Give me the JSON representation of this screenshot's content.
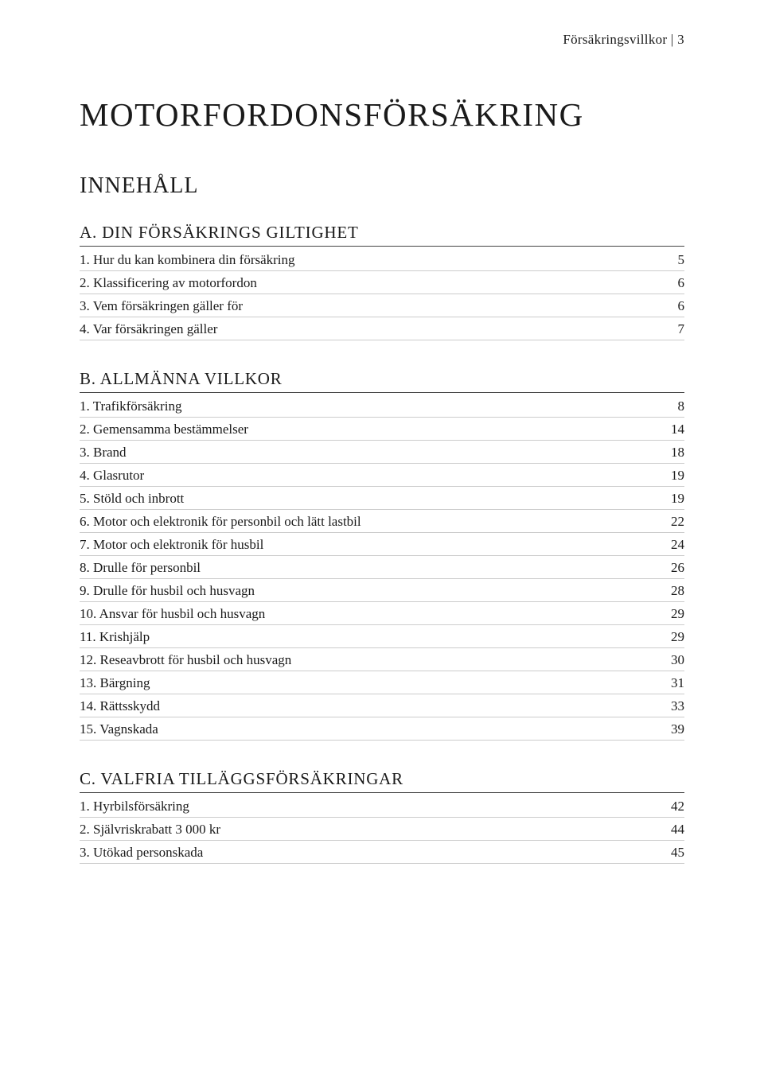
{
  "header": {
    "text": "Försäkringsvillkor | 3"
  },
  "title": "MOTORFORDONSFÖRSÄKRING",
  "subtitle": "INNEHÅLL",
  "sections": [
    {
      "heading": "A. DIN FÖRSÄKRINGS GILTIGHET",
      "items": [
        {
          "label": "1. Hur du kan kombinera din försäkring",
          "page": "5"
        },
        {
          "label": "2. Klassificering av motorfordon",
          "page": "6"
        },
        {
          "label": "3. Vem försäkringen gäller för",
          "page": "6"
        },
        {
          "label": "4. Var försäkringen gäller",
          "page": "7"
        }
      ]
    },
    {
      "heading": "B. ALLMÄNNA VILLKOR",
      "items": [
        {
          "label": "1. Trafikförsäkring",
          "page": "8"
        },
        {
          "label": "2. Gemensamma bestämmelser",
          "page": "14"
        },
        {
          "label": "3. Brand",
          "page": "18"
        },
        {
          "label": "4. Glasrutor",
          "page": "19"
        },
        {
          "label": "5. Stöld och inbrott",
          "page": "19"
        },
        {
          "label": "6. Motor och elektronik för personbil och lätt lastbil",
          "page": "22"
        },
        {
          "label": "7. Motor och elektronik för husbil",
          "page": "24"
        },
        {
          "label": "8. Drulle för personbil",
          "page": "26"
        },
        {
          "label": "9. Drulle för husbil och husvagn",
          "page": "28"
        },
        {
          "label": "10. Ansvar för husbil och husvagn",
          "page": "29"
        },
        {
          "label": "11. Krishjälp",
          "page": "29"
        },
        {
          "label": "12. Reseavbrott för husbil och husvagn",
          "page": "30"
        },
        {
          "label": "13. Bärgning",
          "page": "31"
        },
        {
          "label": "14. Rättsskydd",
          "page": "33"
        },
        {
          "label": "15. Vagnskada",
          "page": "39"
        }
      ]
    },
    {
      "heading": "C. VALFRIA TILLÄGGSFÖRSÄKRINGAR",
      "items": [
        {
          "label": "1. Hyrbilsförsäkring",
          "page": "42"
        },
        {
          "label": "2. Självriskrabatt 3 000 kr",
          "page": "44"
        },
        {
          "label": "3. Utökad personskada",
          "page": "45"
        }
      ]
    }
  ]
}
